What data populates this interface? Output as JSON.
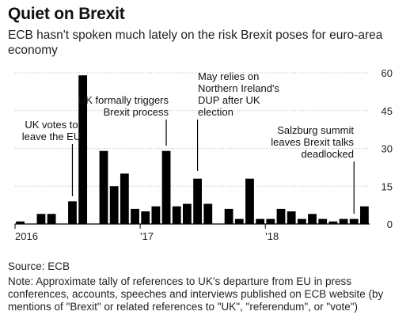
{
  "header": {
    "title": "Quiet on Brexit",
    "subtitle": "ECB hasn't spoken much lately on the risk Brexit poses for euro-area economy"
  },
  "chart_data": {
    "type": "bar",
    "bar_color": "#000000",
    "grid": true,
    "x_tick_labels": [
      "2016",
      "'17",
      "'18"
    ],
    "y_ticks": [
      0,
      15,
      30,
      45,
      60
    ],
    "ylim": [
      0,
      60
    ],
    "categories": [
      "2016-01",
      "2016-02",
      "2016-03",
      "2016-04",
      "2016-05",
      "2016-06",
      "2016-07",
      "2016-08",
      "2016-09",
      "2016-10",
      "2016-11",
      "2016-12",
      "2017-01",
      "2017-02",
      "2017-03",
      "2017-04",
      "2017-05",
      "2017-06",
      "2017-07",
      "2017-08",
      "2017-09",
      "2017-10",
      "2017-11",
      "2017-12",
      "2018-01",
      "2018-02",
      "2018-03",
      "2018-04",
      "2018-05",
      "2018-06",
      "2018-07",
      "2018-08",
      "2018-09",
      "2018-10"
    ],
    "values": [
      1,
      0,
      4,
      4,
      0,
      9,
      59,
      0,
      29,
      15,
      20,
      6,
      5,
      7,
      29,
      7,
      8,
      18,
      8,
      0,
      6,
      2,
      18,
      2,
      2,
      6,
      5,
      2,
      4,
      2,
      1,
      2,
      2,
      7
    ],
    "annotations": [
      {
        "text": [
          "UK votes to",
          "leave the EU"
        ],
        "category": "2016-06"
      },
      {
        "text": [
          "UK formally triggers",
          "Brexit process"
        ],
        "category": "2017-03"
      },
      {
        "text": [
          "May relies on",
          "Northern Ireland's",
          "DUP after UK",
          "election"
        ],
        "category": "2017-06"
      },
      {
        "text": [
          "Salzburg summit",
          "leaves Brexit talks",
          "deadlocked"
        ],
        "category": "2018-09"
      }
    ]
  },
  "footer": {
    "source": "Source: ECB",
    "note": "Note: Approximate tally of references to UK's departure from EU in press conferences, accounts, speeches and interviews published on ECB website (by mentions of \"Brexit\" or related references to \"UK\", \"referendum\", or \"vote\")"
  }
}
